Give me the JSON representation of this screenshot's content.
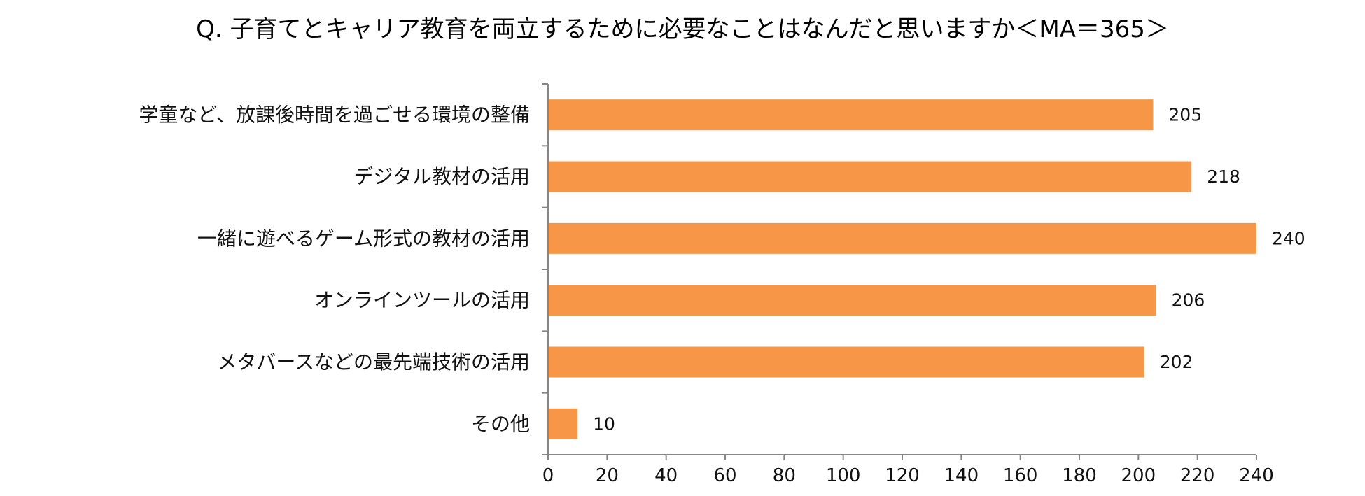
{
  "chart_data": {
    "type": "bar",
    "orientation": "horizontal",
    "title": "Q. 子育てとキャリア教育を両立するために必要なことはなんだと思いますか＜MA＝365＞",
    "categories": [
      "学童など、放課後時間を過ごせる環境の整備",
      "デジタル教材の活用",
      "一緒に遊べるゲーム形式の教材の活用",
      "オンラインツールの活用",
      "メタバースなどの最先端技術の活用",
      "その他"
    ],
    "values": [
      205,
      218,
      240,
      206,
      202,
      10
    ],
    "value_labels": [
      "205",
      "218",
      "240",
      "206",
      "202",
      "10"
    ],
    "xlim": [
      0,
      240
    ],
    "xticks": [
      "0",
      "20",
      "40",
      "60",
      "80",
      "100",
      "120",
      "140",
      "160",
      "180",
      "200",
      "220",
      "240"
    ],
    "grid": false,
    "legend": "none",
    "bar_color": "#F79646",
    "axis_color": "#868686"
  }
}
